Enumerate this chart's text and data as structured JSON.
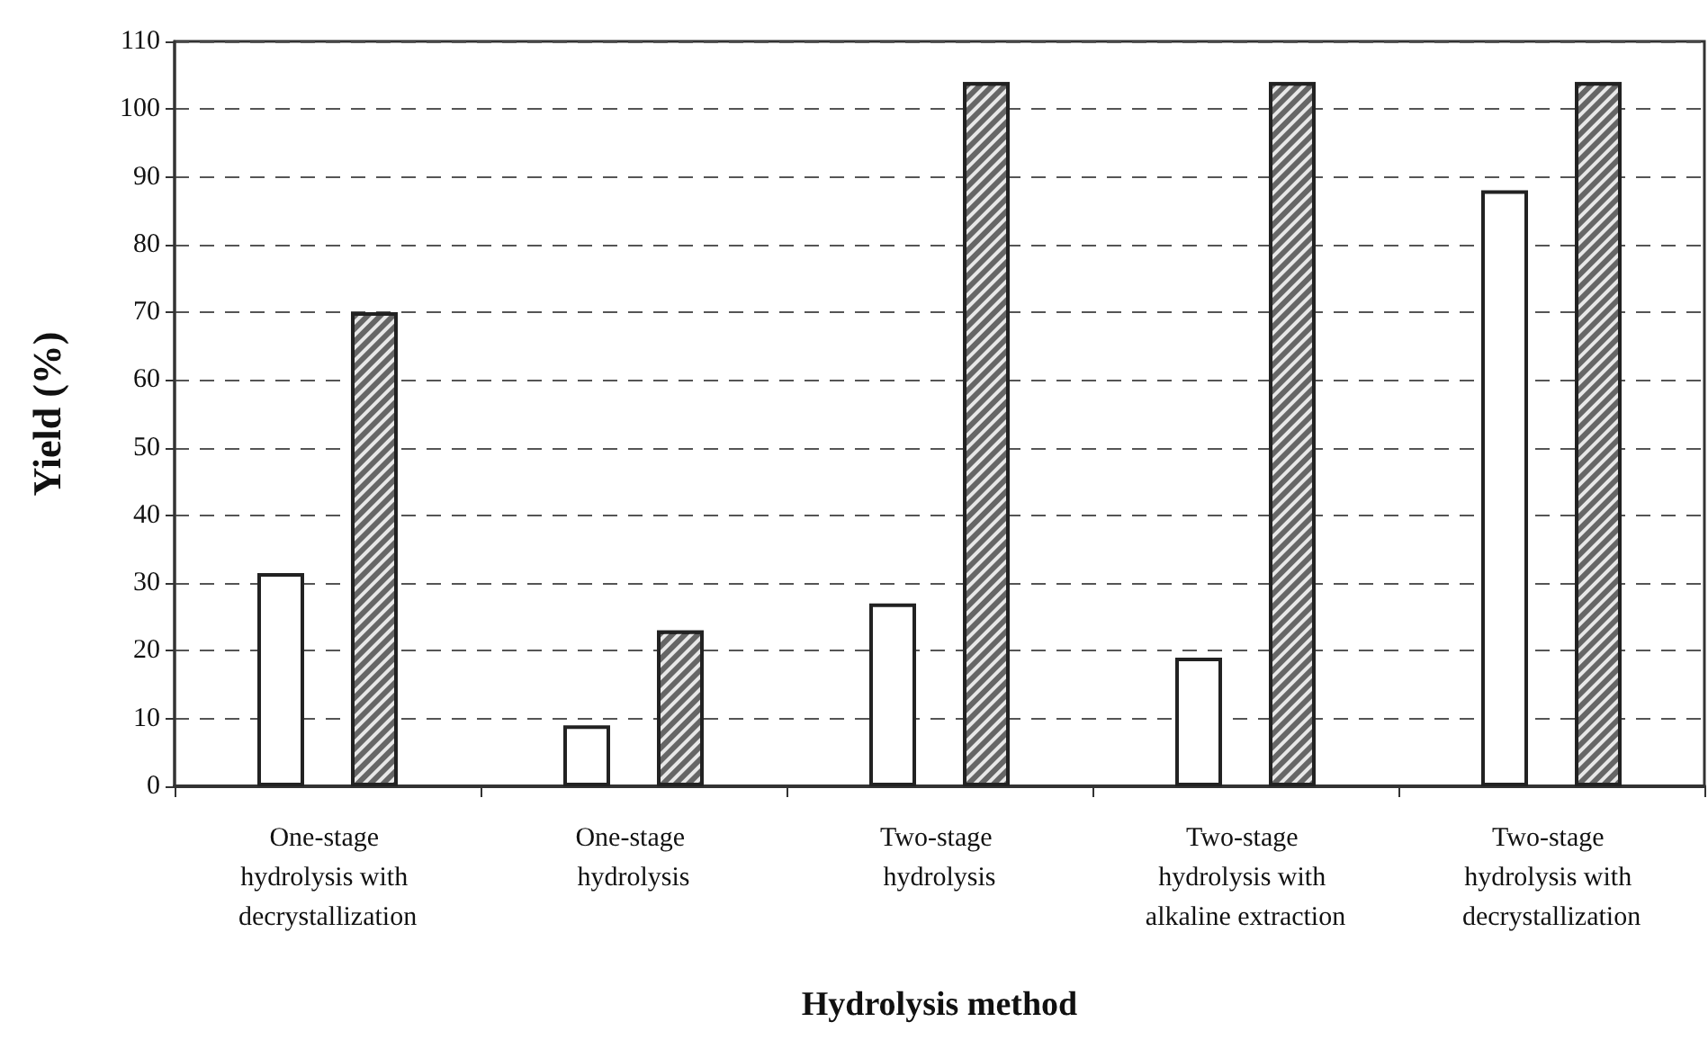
{
  "chart_data": {
    "type": "bar",
    "xlabel": "Hydrolysis method",
    "ylabel": "Yield (%)",
    "categories": [
      "One-stage hydrolysis with decrystallization",
      "One-stage hydrolysis",
      "Two-stage hydrolysis",
      "Two-stage hydrolysis with alkaline extraction",
      "Two-stage hydrolysis with decrystallization"
    ],
    "series": [
      {
        "color": "#ffffff",
        "values": [
          31.5,
          9,
          27,
          19,
          88
        ]
      },
      {
        "color": "#666666",
        "values": [
          70,
          23,
          104,
          104,
          104
        ]
      }
    ],
    "ylim": [
      0,
      110
    ],
    "yticks": [
      0,
      10,
      20,
      30,
      40,
      50,
      60,
      70,
      80,
      90,
      100,
      110
    ],
    "grid": "y"
  }
}
